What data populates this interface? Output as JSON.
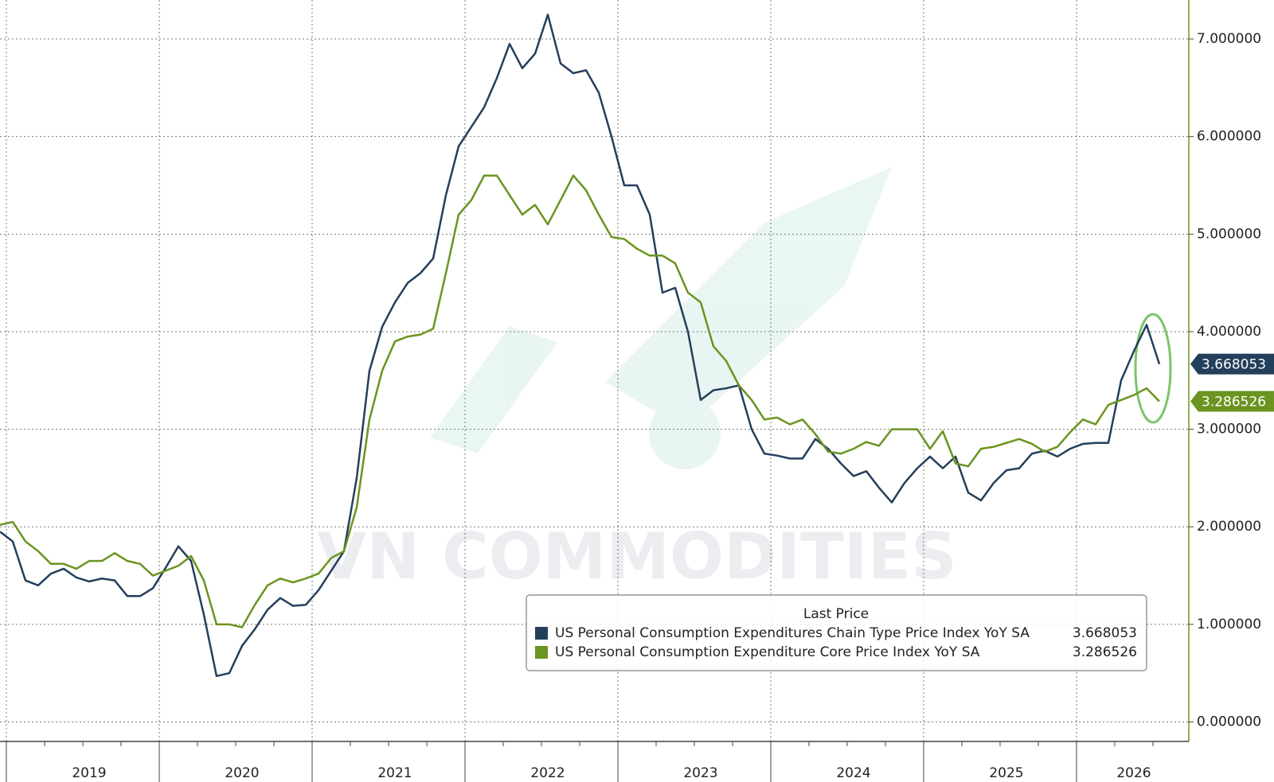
{
  "chart_data": {
    "type": "line",
    "watermark": "VN COMMODITIES",
    "legend_title": "Last Price",
    "categories": [
      null,
      null,
      null,
      null,
      null,
      null,
      null,
      "2019",
      null,
      null,
      null,
      null,
      null,
      null,
      null,
      null,
      null,
      null,
      null,
      "2020",
      null,
      null,
      null,
      null,
      null,
      null,
      null,
      null,
      null,
      null,
      null,
      "2021",
      null,
      null,
      null,
      null,
      null,
      null,
      null,
      null,
      null,
      null,
      null,
      "2022",
      null,
      null,
      null,
      null,
      null,
      null,
      null,
      null,
      null,
      null,
      null,
      "2023",
      null,
      null,
      null,
      null,
      null,
      null,
      null,
      null,
      null,
      null,
      null,
      "2024",
      null,
      null,
      null,
      null,
      null,
      null,
      null,
      null,
      null,
      null,
      null,
      "2025",
      null,
      null,
      null,
      null,
      null,
      null,
      null,
      null,
      null,
      "2026",
      null,
      null
    ],
    "series": [
      {
        "name": "US Personal Consumption Expenditures Chain Type Price Index YoY SA",
        "color": "#243f5c",
        "values": [
          1.95,
          1.85,
          1.45,
          1.4,
          1.52,
          1.57,
          1.48,
          1.44,
          1.47,
          1.45,
          1.29,
          1.29,
          1.37,
          1.58,
          1.8,
          1.65,
          1.1,
          0.47,
          0.5,
          0.78,
          0.95,
          1.15,
          1.27,
          1.19,
          1.2,
          1.35,
          1.55,
          1.75,
          2.5,
          3.6,
          4.05,
          4.3,
          4.5,
          4.6,
          4.75,
          5.4,
          5.9,
          6.1,
          6.3,
          6.6,
          6.95,
          6.7,
          6.85,
          7.25,
          6.75,
          6.65,
          6.68,
          6.45,
          6.0,
          5.5,
          5.5,
          5.2,
          4.4,
          4.45,
          4.0,
          3.3,
          3.4,
          3.42,
          3.45,
          3.0,
          2.75,
          2.73,
          2.7,
          2.7,
          2.9,
          2.8,
          2.65,
          2.52,
          2.57,
          2.4,
          2.25,
          2.45,
          2.6,
          2.72,
          2.6,
          2.72,
          2.35,
          2.27,
          2.45,
          2.58,
          2.6,
          2.75,
          2.78,
          2.72,
          2.8,
          2.85,
          2.86,
          2.86,
          3.5,
          3.8,
          4.07,
          3.668053
        ]
      },
      {
        "name": "US Personal Consumption Expenditure Core Price Index YoY SA",
        "color": "#6b9420",
        "values": [
          2.02,
          2.05,
          1.85,
          1.75,
          1.62,
          1.62,
          1.57,
          1.65,
          1.65,
          1.73,
          1.65,
          1.62,
          1.5,
          1.55,
          1.6,
          1.7,
          1.45,
          1.0,
          1.0,
          0.97,
          1.2,
          1.4,
          1.47,
          1.43,
          1.47,
          1.52,
          1.68,
          1.75,
          2.2,
          3.1,
          3.6,
          3.9,
          3.95,
          3.97,
          4.03,
          4.6,
          5.2,
          5.35,
          5.6,
          5.6,
          5.4,
          5.2,
          5.3,
          5.1,
          5.35,
          5.6,
          5.45,
          5.2,
          4.97,
          4.95,
          4.85,
          4.78,
          4.78,
          4.7,
          4.4,
          4.3,
          3.85,
          3.7,
          3.45,
          3.3,
          3.1,
          3.12,
          3.05,
          3.1,
          2.95,
          2.77,
          2.75,
          2.8,
          2.87,
          2.83,
          3.0,
          3.0,
          3.0,
          2.8,
          2.98,
          2.65,
          2.62,
          2.8,
          2.82,
          2.86,
          2.9,
          2.85,
          2.77,
          2.82,
          2.97,
          3.1,
          3.05,
          3.25,
          3.3,
          3.35,
          3.42,
          3.286526
        ]
      }
    ],
    "ylim": [
      -0.2,
      7.4
    ],
    "yticks": [
      {
        "value": 0,
        "label": "0.000000"
      },
      {
        "value": 1,
        "label": "1.000000"
      },
      {
        "value": 2,
        "label": "2.000000"
      },
      {
        "value": 3,
        "label": "3.000000"
      },
      {
        "value": 4,
        "label": "4.000000"
      },
      {
        "value": 5,
        "label": "5.000000"
      },
      {
        "value": 6,
        "label": "6.000000"
      },
      {
        "value": 7,
        "label": "7.000000"
      }
    ],
    "grid": true
  }
}
